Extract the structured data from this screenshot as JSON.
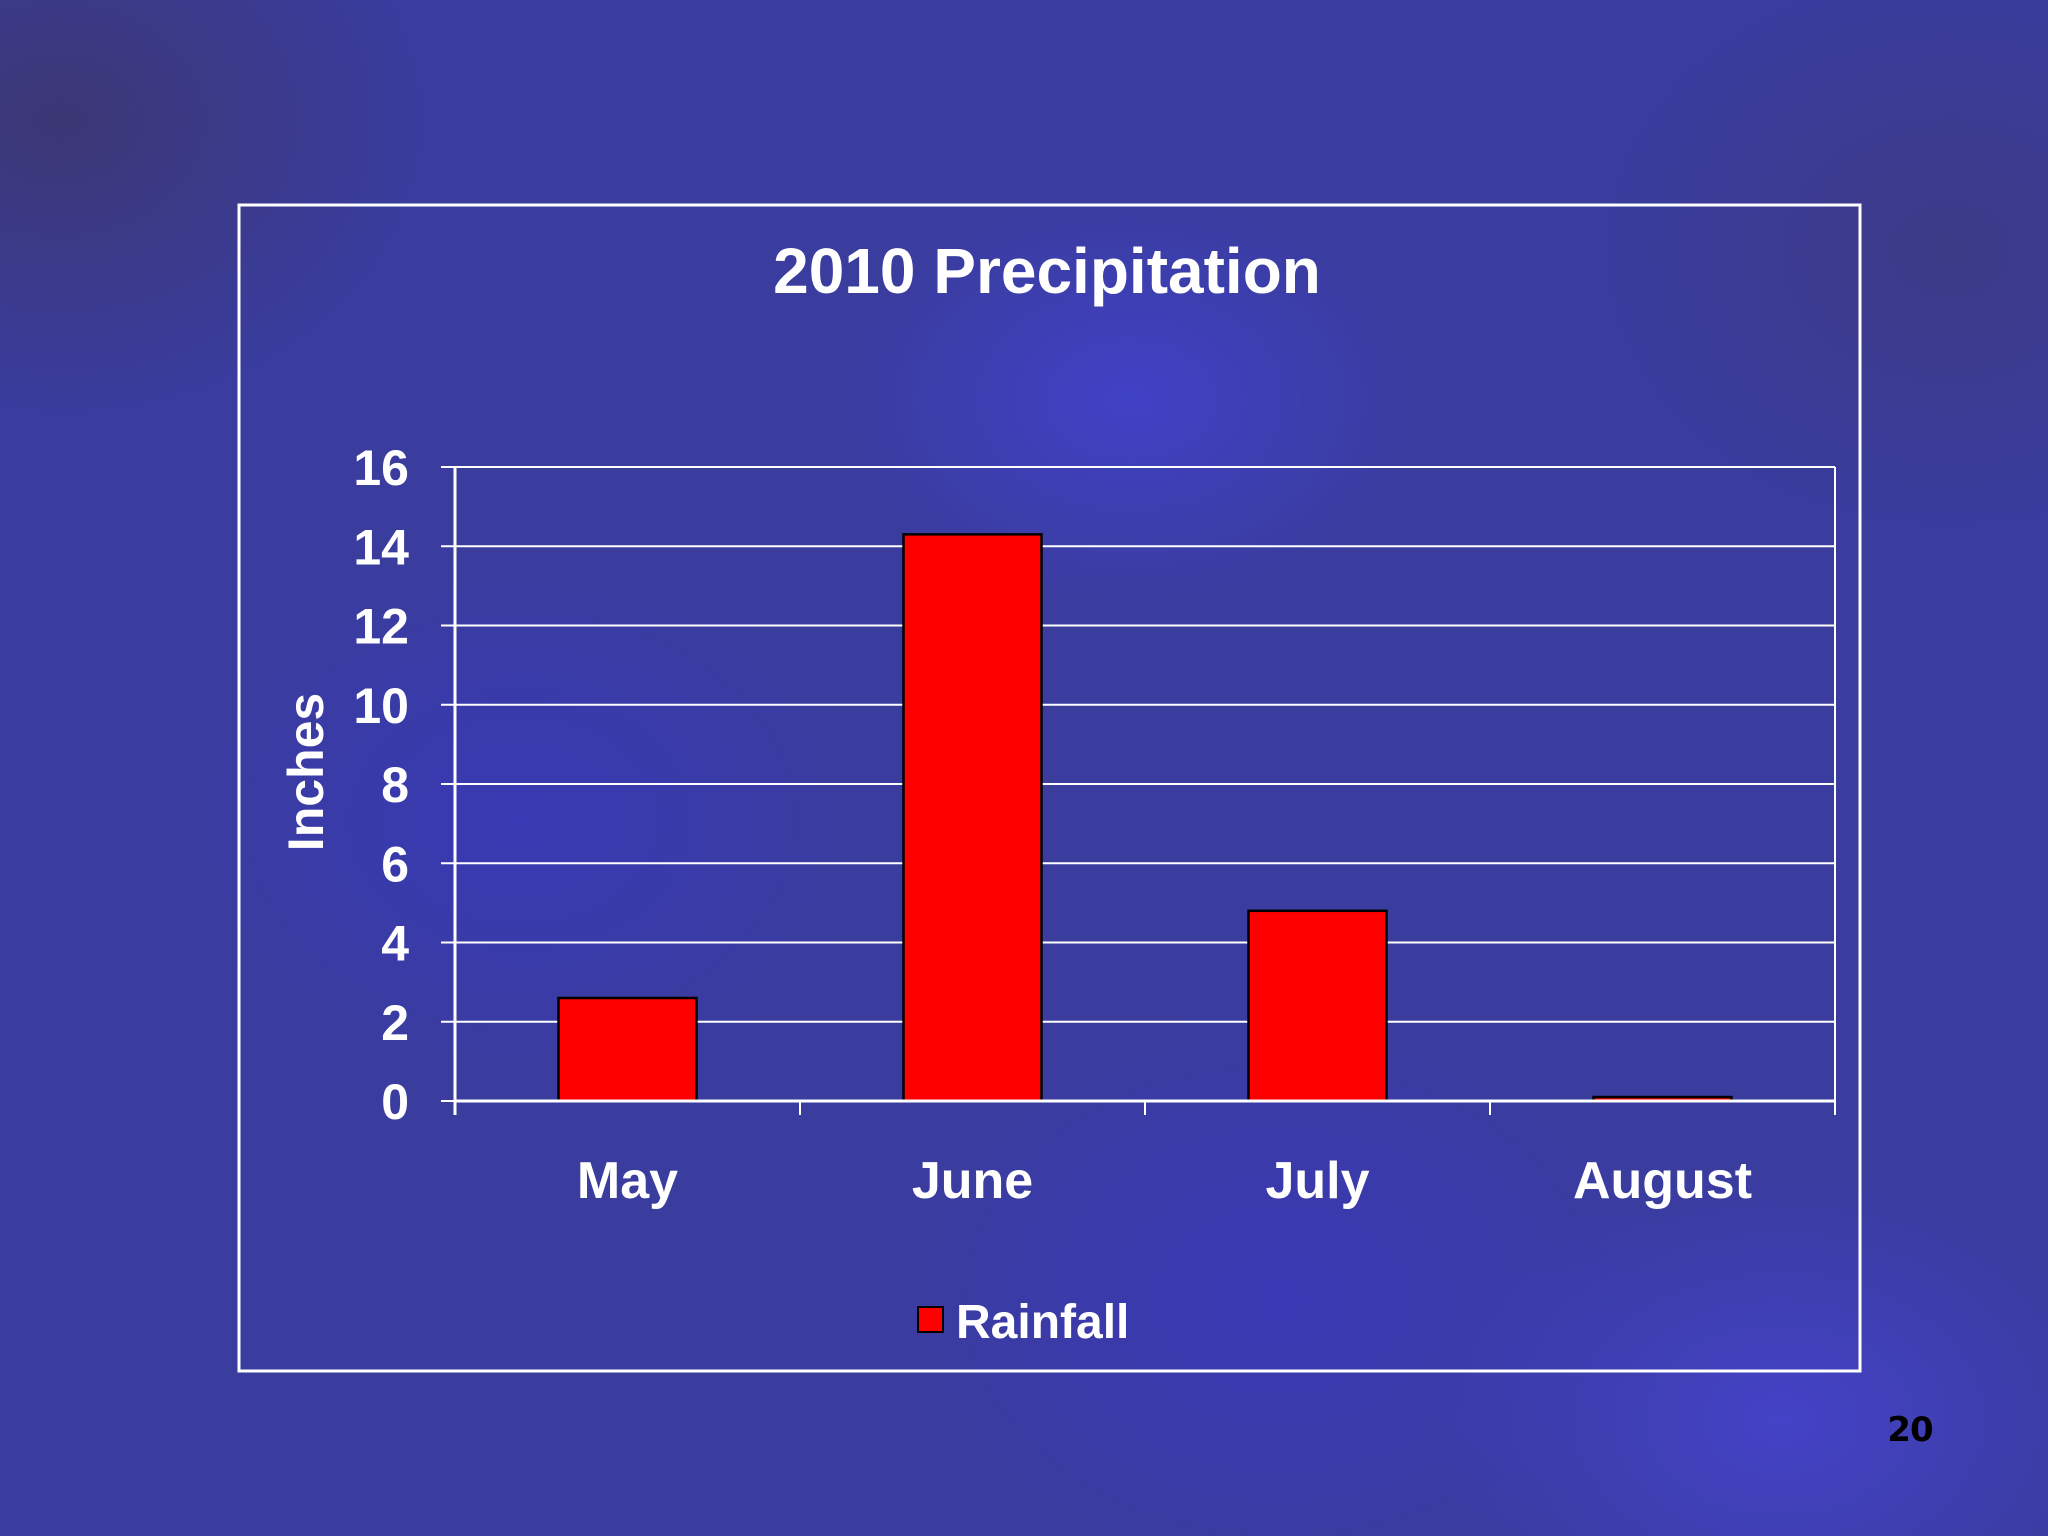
{
  "slide": {
    "page_number": "20"
  },
  "chart_data": {
    "type": "bar",
    "title": "2010 Precipitation",
    "xlabel": "",
    "ylabel": "Inches",
    "categories": [
      "May",
      "June",
      "July",
      "August"
    ],
    "series": [
      {
        "name": "Rainfall",
        "values": [
          2.6,
          14.3,
          4.8,
          0.1
        ],
        "color": "#ff0000"
      }
    ],
    "ylim": [
      0,
      16
    ],
    "yticks": [
      "0",
      "2",
      "4",
      "6",
      "8",
      "10",
      "12",
      "14",
      "16"
    ],
    "grid": true,
    "legend": "bottom-center",
    "colors": {
      "text": "#ffffff",
      "gridline": "#ffffff",
      "bar_border": "#000000",
      "frame": "#ffffff"
    }
  }
}
